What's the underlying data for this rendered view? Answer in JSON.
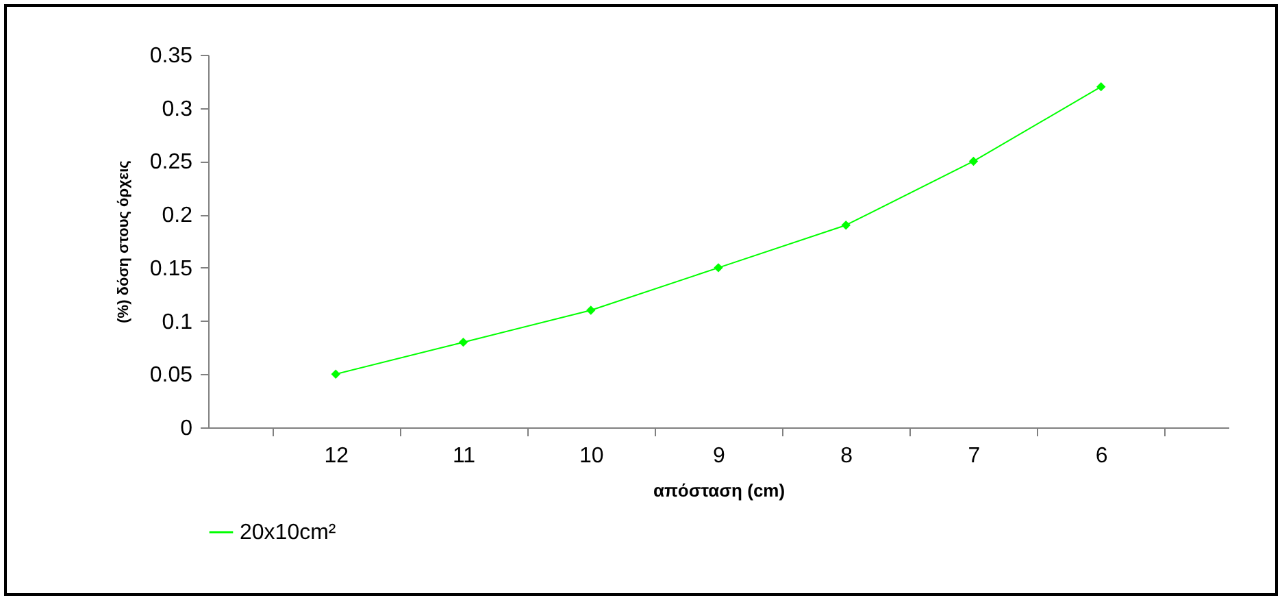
{
  "chart_data": {
    "type": "line",
    "xlabel": "απόσταση (cm)",
    "ylabel": "(%) δόση στους όρχεις",
    "categories": [
      "12",
      "11",
      "10",
      "9",
      "8",
      "7",
      "6"
    ],
    "series": [
      {
        "name": "20x10cm²",
        "color": "#00ff00",
        "values": [
          0.05,
          0.08,
          0.11,
          0.15,
          0.19,
          0.25,
          0.32
        ]
      }
    ],
    "ylim": [
      0,
      0.35
    ],
    "yticks": [
      0,
      0.05,
      0.1,
      0.15,
      0.2,
      0.25,
      0.3,
      0.35
    ],
    "grid": false,
    "legend": "bottom",
    "marker": "diamond",
    "line_style": "solid"
  }
}
